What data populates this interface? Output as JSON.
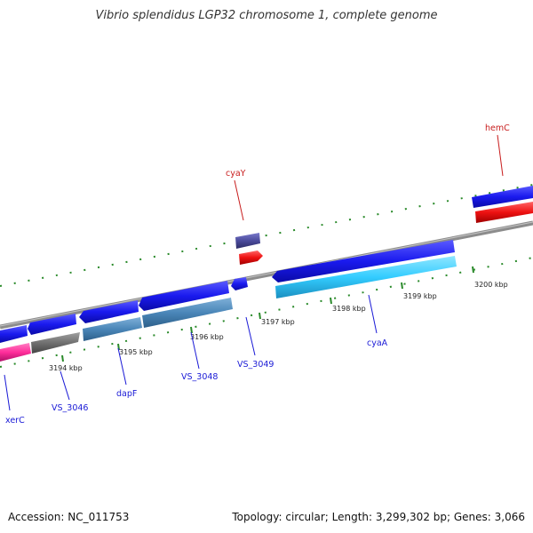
{
  "title": "Vibrio splendidus LGP32 chromosome 1, complete genome",
  "accession": "Accession: NC_011753",
  "topology": "Topology: circular; Length: 3,299,302 bp; Genes: 3,066",
  "colors": {
    "cds_forward": "#1a1aee",
    "cds_reverse_gene": "#4a86b8",
    "cds_light": "#33ccff",
    "rrna_red": "#ee1111",
    "pink": "#ff2d9b",
    "gray_gene": "#707070",
    "navy_gene": "#4b4b9c",
    "backbone": "#8c8c8c",
    "tick_green": "#2a8a2a",
    "label_blue": "#1a1ad6",
    "label_red": "#c81e1e"
  },
  "kbp_ticks": [
    {
      "name": "kbp-3194",
      "label": "3194 kbp"
    },
    {
      "name": "kbp-3195",
      "label": "3195 kbp"
    },
    {
      "name": "kbp-3196",
      "label": "3196 kbp"
    },
    {
      "name": "kbp-3197",
      "label": "3197 kbp"
    },
    {
      "name": "kbp-3198",
      "label": "3198 kbp"
    },
    {
      "name": "kbp-3199",
      "label": "3199 kbp"
    },
    {
      "name": "kbp-3200",
      "label": "3200 kbp"
    }
  ],
  "gene_labels": [
    {
      "name": "gene-xerC",
      "text": "xerC",
      "color": "#1a1ad6"
    },
    {
      "name": "gene-VS_3046",
      "text": "VS_3046",
      "color": "#1a1ad6"
    },
    {
      "name": "gene-dapF",
      "text": "dapF",
      "color": "#1a1ad6"
    },
    {
      "name": "gene-VS_3048",
      "text": "VS_3048",
      "color": "#1a1ad6"
    },
    {
      "name": "gene-VS_3049",
      "text": "VS_3049",
      "color": "#1a1ad6"
    },
    {
      "name": "gene-cyaA",
      "text": "cyaA",
      "color": "#1a1ad6"
    },
    {
      "name": "gene-cyaY",
      "text": "cyaY",
      "color": "#c81e1e"
    },
    {
      "name": "gene-hemC",
      "text": "hemC",
      "color": "#c81e1e"
    }
  ]
}
